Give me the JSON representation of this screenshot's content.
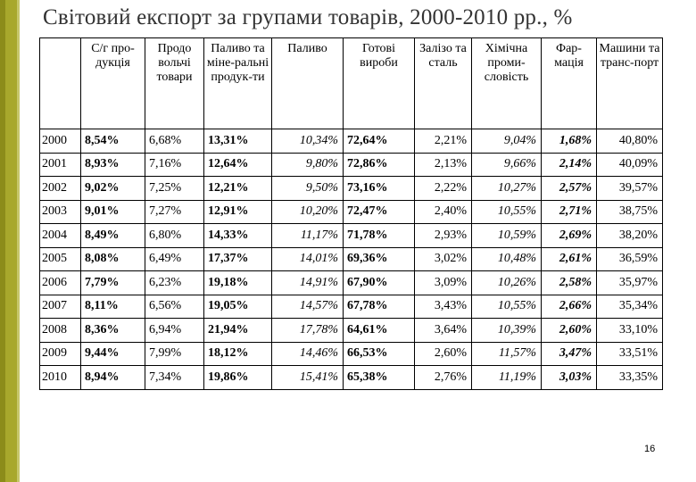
{
  "title": "Світовий експорт за групами товарів, 2000-2010 рр., %",
  "page_number": "16",
  "colors": {
    "accent_bar": "#a8a82c",
    "title_text": "#333333"
  },
  "headers": [
    "",
    "С/г про-дукція",
    "Продо вольчі товари",
    "Паливо та міне-ральні продук-ти",
    "Паливо",
    "Готові вироби",
    "Залізо та сталь",
    "Хімічна проми-словість",
    "Фар-мація",
    "Машини та транс-порт"
  ],
  "rows": [
    [
      "2000",
      "8,54%",
      "6,68%",
      "13,31%",
      "10,34%",
      "72,64%",
      "2,21%",
      "9,04%",
      "1,68%",
      "40,80%"
    ],
    [
      "2001",
      "8,93%",
      "7,16%",
      "12,64%",
      "9,80%",
      "72,86%",
      "2,13%",
      "9,66%",
      "2,14%",
      "40,09%"
    ],
    [
      "2002",
      "9,02%",
      "7,25%",
      "12,21%",
      "9,50%",
      "73,16%",
      "2,22%",
      "10,27%",
      "2,57%",
      "39,57%"
    ],
    [
      "2003",
      "9,01%",
      "7,27%",
      "12,91%",
      "10,20%",
      "72,47%",
      "2,40%",
      "10,55%",
      "2,71%",
      "38,75%"
    ],
    [
      "2004",
      "8,49%",
      "6,80%",
      "14,33%",
      "11,17%",
      "71,78%",
      "2,93%",
      "10,59%",
      "2,69%",
      "38,20%"
    ],
    [
      "2005",
      "8,08%",
      "6,49%",
      "17,37%",
      "14,01%",
      "69,36%",
      "3,02%",
      "10,48%",
      "2,61%",
      "36,59%"
    ],
    [
      "2006",
      "7,79%",
      "6,23%",
      "19,18%",
      "14,91%",
      "67,90%",
      "3,09%",
      "10,26%",
      "2,58%",
      "35,97%"
    ],
    [
      "2007",
      "8,11%",
      "6,56%",
      "19,05%",
      "14,57%",
      "67,78%",
      "3,43%",
      "10,55%",
      "2,66%",
      "35,34%"
    ],
    [
      "2008",
      "8,36%",
      "6,94%",
      "21,94%",
      "17,78%",
      "64,61%",
      "3,64%",
      "10,39%",
      "2,60%",
      "33,10%"
    ],
    [
      "2009",
      "9,44%",
      "7,99%",
      "18,12%",
      "14,46%",
      "66,53%",
      "2,60%",
      "11,57%",
      "3,47%",
      "33,51%"
    ],
    [
      "2010",
      "8,94%",
      "7,34%",
      "19,86%",
      "15,41%",
      "65,38%",
      "2,76%",
      "11,19%",
      "3,03%",
      "33,35%"
    ]
  ]
}
